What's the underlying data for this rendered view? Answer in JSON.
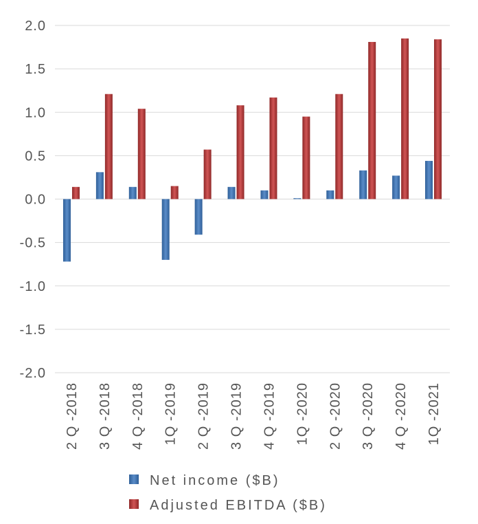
{
  "chart_data": {
    "type": "bar",
    "categories": [
      "2Q-2018",
      "3Q-2018",
      "4Q-2018",
      "1Q-2019",
      "2Q-2019",
      "3Q-2019",
      "4Q-2019",
      "1Q-2020",
      "2Q-2020",
      "3Q-2020",
      "4Q-2020",
      "1Q-2021"
    ],
    "category_display": [
      "2 Q -2018",
      "3 Q -2018",
      "4 Q -2018",
      "1Q -2019",
      "2 Q -2019",
      "3 Q -2019",
      "4 Q -2019",
      "1Q -2020",
      "2 Q -2020",
      "3 Q -2020",
      "4 Q -2020",
      "1Q -2021"
    ],
    "series": [
      {
        "name": "Net income ($B)",
        "label_display": "Net income ($B)",
        "color": "#4a7ab5",
        "values": [
          -0.72,
          0.31,
          0.14,
          -0.7,
          -0.41,
          0.14,
          0.1,
          0.01,
          0.1,
          0.33,
          0.27,
          0.44
        ]
      },
      {
        "name": "Adjusted EBITDA ($B)",
        "label_display": "Adjusted EBITDA ($B)",
        "color": "#b84444",
        "values": [
          0.14,
          1.21,
          1.04,
          0.15,
          0.57,
          1.08,
          1.17,
          0.95,
          1.21,
          1.81,
          1.85,
          1.84
        ]
      }
    ],
    "yticks": [
      "2.0",
      "1.5",
      "1.0",
      "0.5",
      "0.0",
      "-0.5",
      "-1.0",
      "-1.5",
      "-2.0"
    ],
    "ytick_values": [
      2.0,
      1.5,
      1.0,
      0.5,
      0.0,
      -0.5,
      -1.0,
      -1.5,
      -2.0
    ],
    "ylim": [
      -2.0,
      2.0
    ],
    "grid": true,
    "legend_position": "bottom",
    "title": "",
    "xlabel": "",
    "ylabel": ""
  }
}
